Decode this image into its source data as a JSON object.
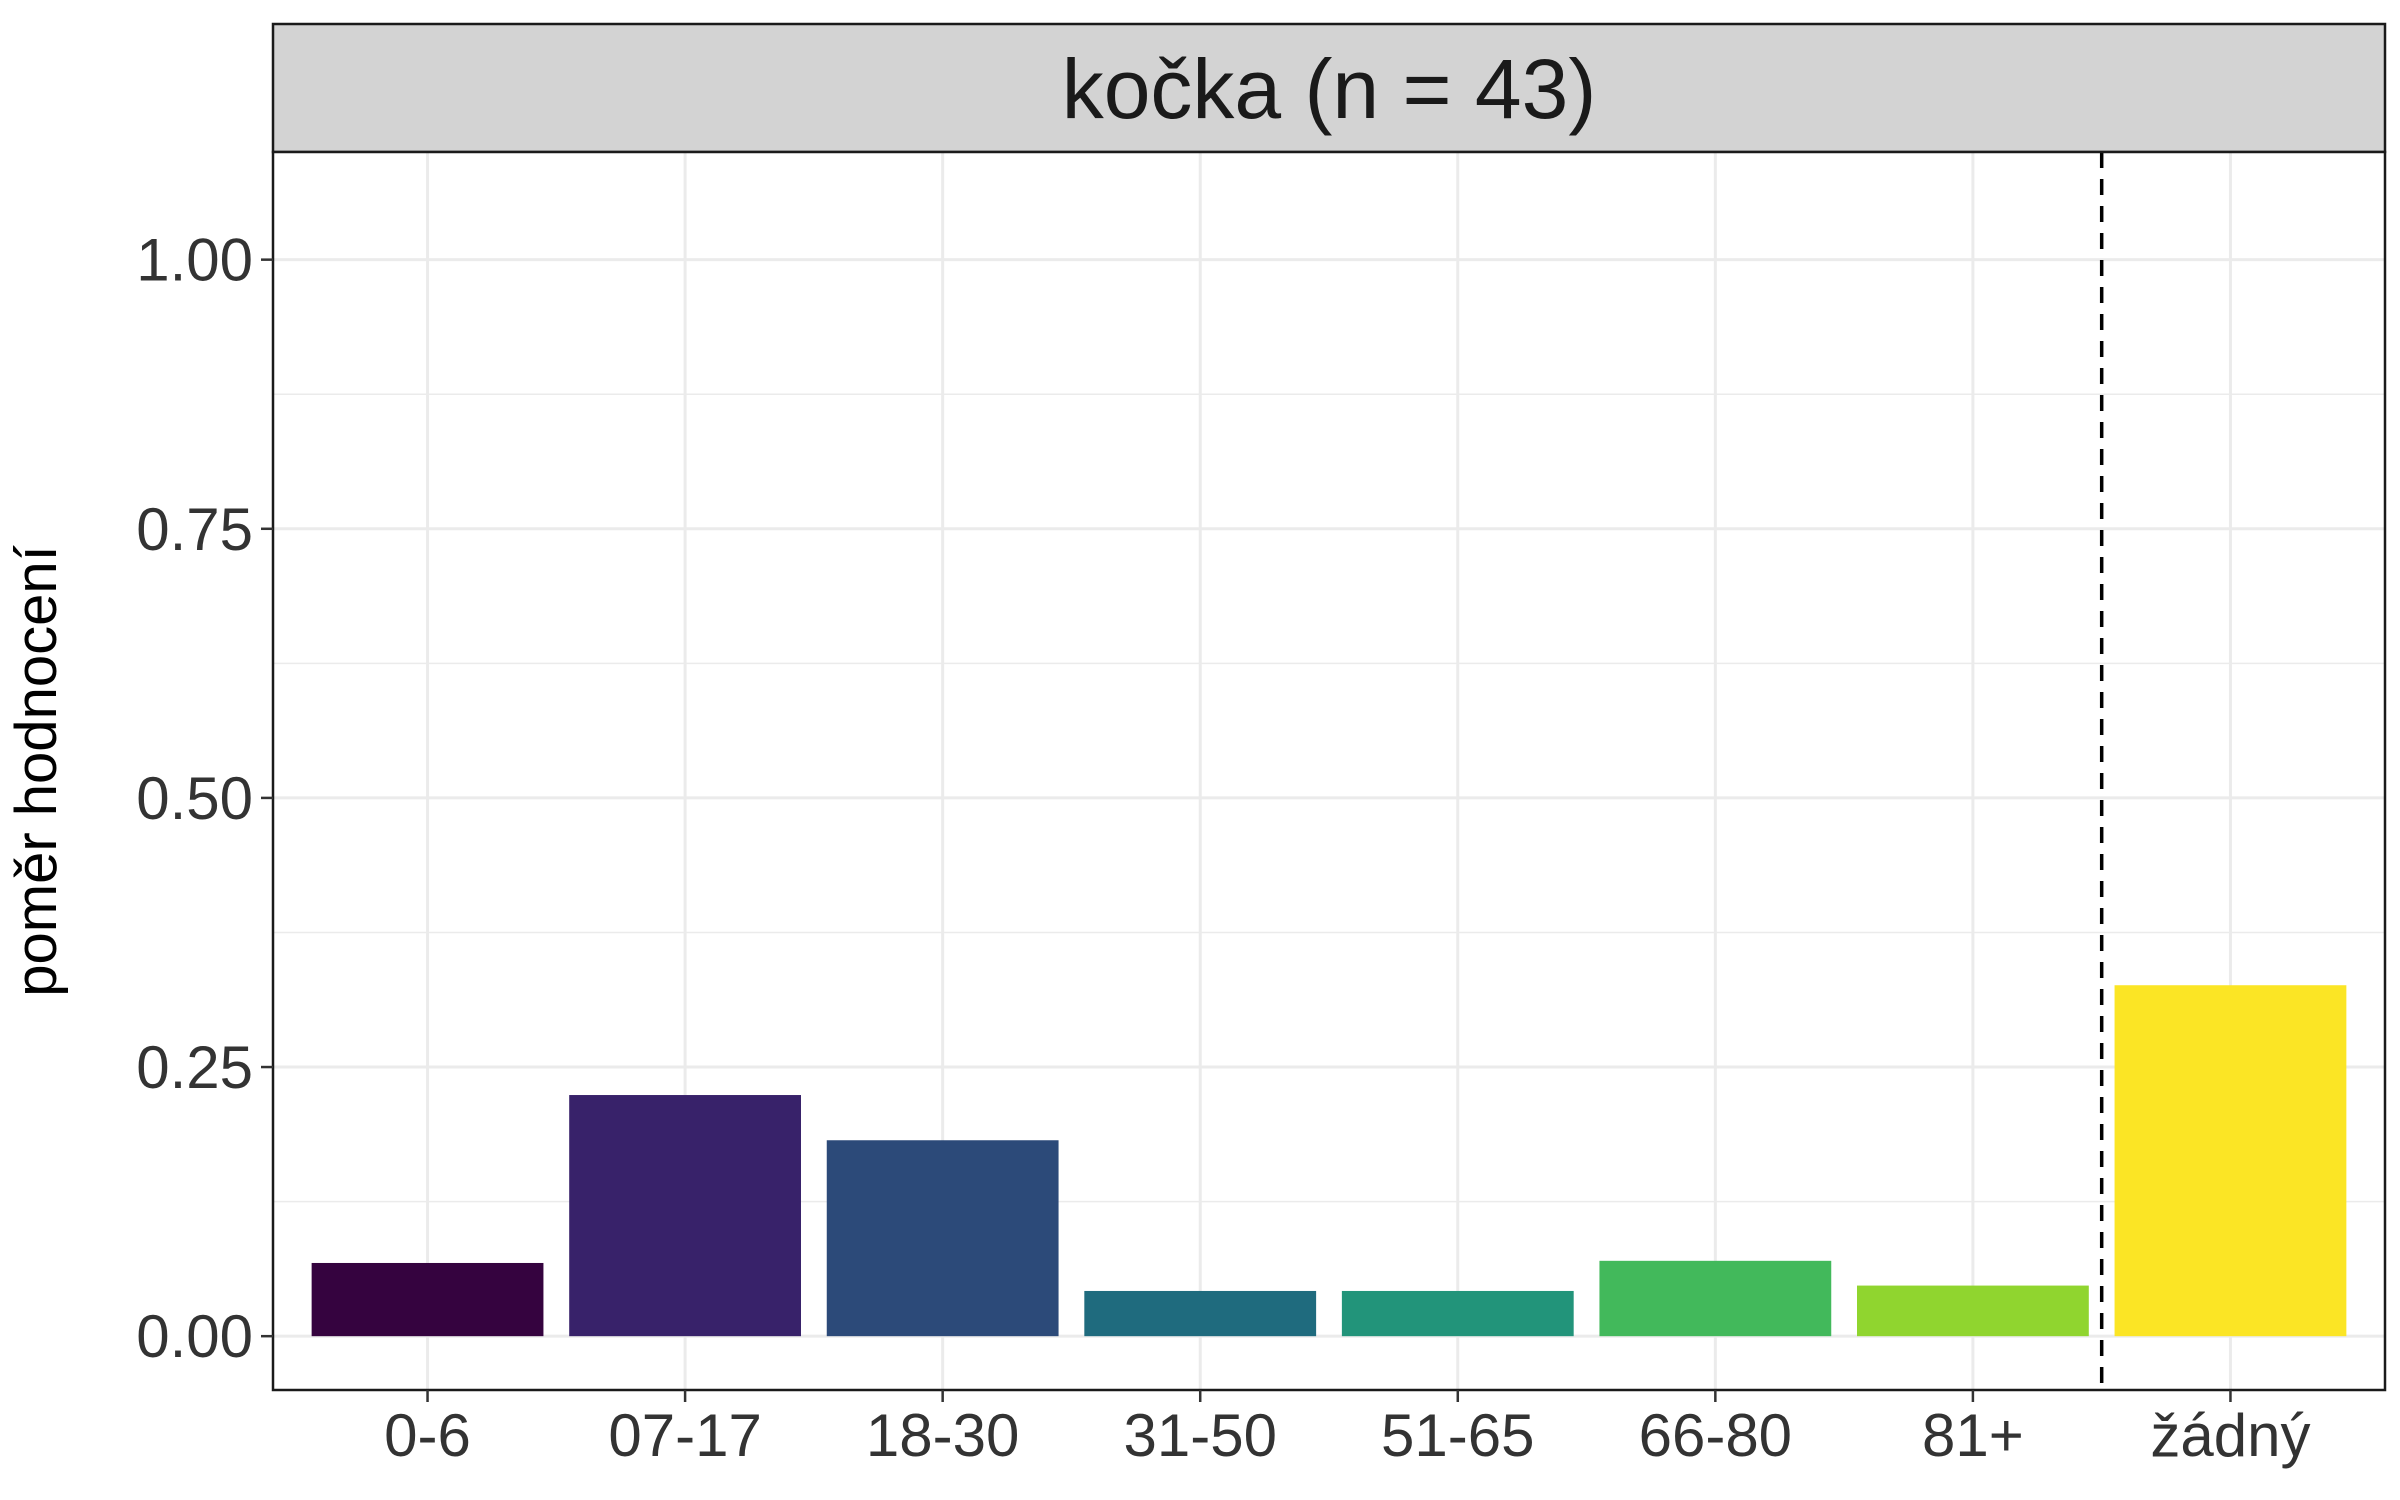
{
  "chart_data": {
    "type": "bar",
    "title": "kočka (n = 43)",
    "xlabel": "",
    "ylabel": "poměr hodnocení",
    "categories": [
      "0-6",
      "07-17",
      "18-30",
      "31-50",
      "51-65",
      "66-80",
      "81+",
      "žádný"
    ],
    "values": [
      0.068,
      0.224,
      0.182,
      0.042,
      0.042,
      0.07,
      0.047,
      0.326
    ],
    "ylim": [
      -0.05,
      1.1
    ],
    "yticks": [
      0.0,
      0.25,
      0.5,
      0.75,
      1.0
    ],
    "ytick_labels": [
      "0.00",
      "0.25",
      "0.50",
      "0.75",
      "1.00"
    ],
    "bar_colors": [
      "#35033f",
      "#38226a",
      "#2c4a79",
      "#1f6b7e",
      "#22947a",
      "#42b95b",
      "#90d52f",
      "#fbe525"
    ],
    "grid": true,
    "legend": "none",
    "reference_line": {
      "between_categories": [
        "81+",
        "žádný"
      ],
      "style": "dashed",
      "color": "#000000"
    }
  }
}
